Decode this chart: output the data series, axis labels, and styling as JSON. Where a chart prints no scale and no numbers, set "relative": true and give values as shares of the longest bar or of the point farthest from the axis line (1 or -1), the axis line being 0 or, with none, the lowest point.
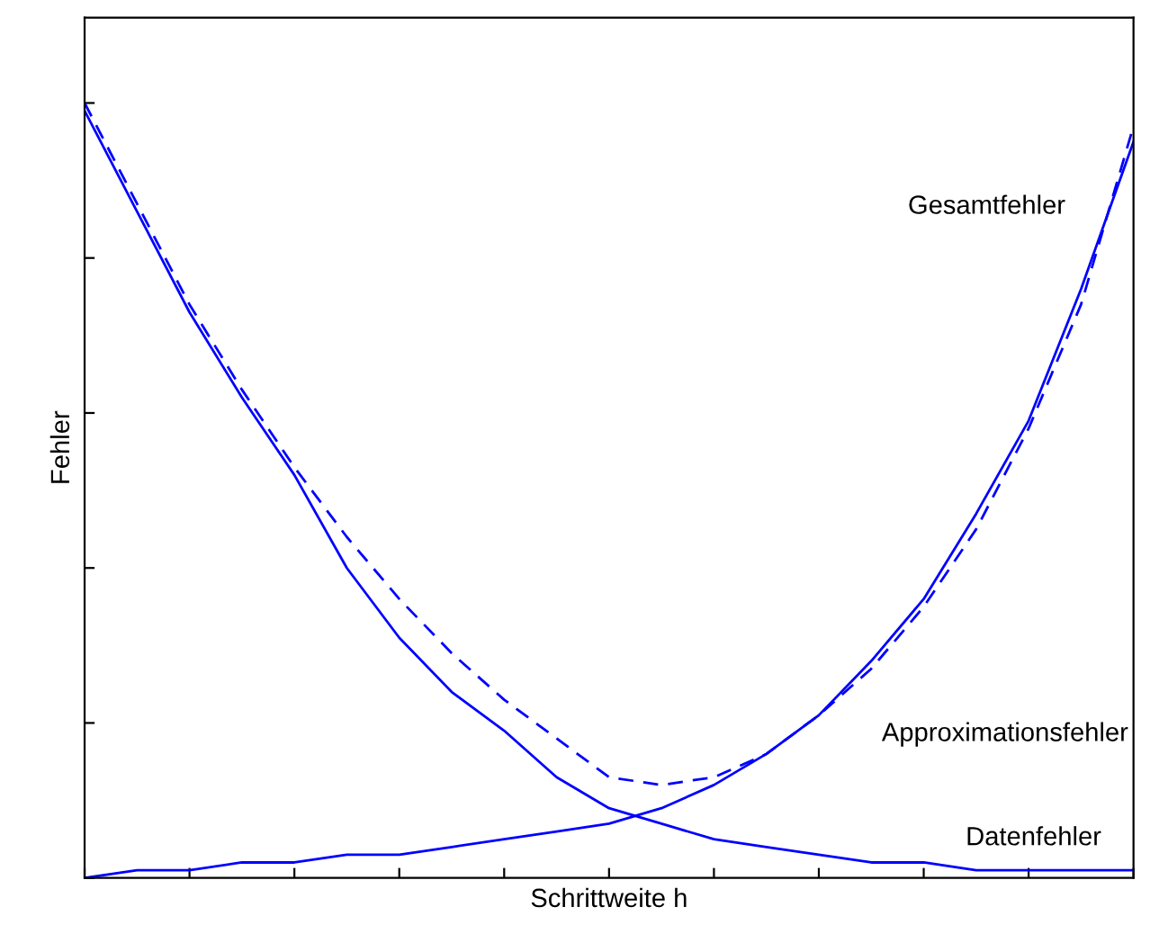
{
  "chart_data": {
    "type": "line",
    "relative": true,
    "xlabel": "Schrittweite h",
    "ylabel": "Fehler",
    "categories": [
      null,
      null,
      null,
      null,
      null,
      null,
      null,
      null,
      null,
      null,
      null,
      null,
      null,
      null,
      null,
      null,
      null,
      null,
      null,
      null,
      null
    ],
    "series": [
      {
        "name": "Gesamtfehler",
        "color": "#0000ff",
        "line_style": "dashed",
        "values": [
          1.0,
          0.87,
          0.74,
          0.63,
          0.53,
          0.44,
          0.36,
          0.29,
          0.23,
          0.18,
          0.13,
          0.12,
          0.13,
          0.16,
          0.21,
          0.27,
          0.35,
          0.45,
          0.58,
          0.74,
          0.97
        ]
      },
      {
        "name": "Approximationsfehler",
        "color": "#0000ff",
        "line_style": "solid",
        "values": [
          0.0,
          0.01,
          0.01,
          0.02,
          0.02,
          0.03,
          0.03,
          0.04,
          0.05,
          0.06,
          0.07,
          0.09,
          0.12,
          0.16,
          0.21,
          0.28,
          0.36,
          0.47,
          0.59,
          0.76,
          0.95
        ]
      },
      {
        "name": "Datenfehler",
        "color": "#0000ff",
        "line_style": "solid",
        "values": [
          0.99,
          0.86,
          0.73,
          0.62,
          0.52,
          0.4,
          0.31,
          0.24,
          0.19,
          0.13,
          0.09,
          0.07,
          0.05,
          0.04,
          0.03,
          0.02,
          0.02,
          0.01,
          0.01,
          0.01,
          0.01
        ]
      }
    ],
    "legend": false
  }
}
